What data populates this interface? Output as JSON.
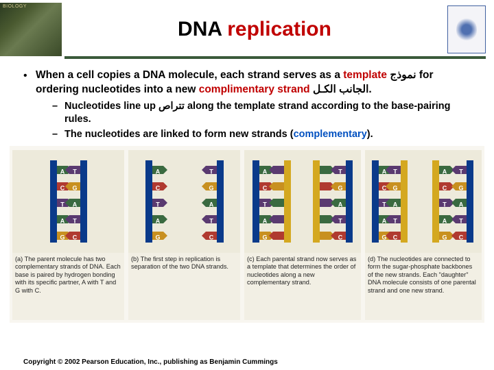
{
  "header": {
    "title_black": "DNA ",
    "title_red": "replication"
  },
  "main_bullet": {
    "pre": "When a cell copies a DNA molecule, each strand serves as a ",
    "template": "template",
    "ar1": " نموذج",
    "mid": " for ordering nucleotides into a new ",
    "complimentary": "complimentary strand",
    "ar2": " الجانب الكـل",
    "post": "."
  },
  "sub1": {
    "pre": "Nucleotides line up ",
    "ar": "تتراص",
    "post": " along the template strand according to the base-pairing rules."
  },
  "sub2": {
    "pre": "The nucleotides are linked to form new strands (",
    "comp": "complementary",
    "post": ")."
  },
  "dna": {
    "backbone_blue": "#0a3a8a",
    "backbone_yellow": "#d4a820",
    "base_colors": {
      "A": "#3a6a40",
      "T": "#5a3a70",
      "C": "#b03a30",
      "G": "#c89020"
    },
    "left_strand": [
      "A",
      "C",
      "T",
      "A",
      "G"
    ],
    "right_strand": [
      "T",
      "G",
      "A",
      "T",
      "C"
    ],
    "bg": "#edeadb"
  },
  "captions": {
    "a": "(a) The parent molecule has two complementary strands of DNA. Each base is paired by hydrogen bonding with its specific partner, A with T and G with C.",
    "b": "(b) The first step in replication is separation of the two DNA strands.",
    "c": "(c) Each parental strand now serves as a template that determines the order of nucleotides along a new complementary strand.",
    "d": "(d) The nucleotides are connected to form the sugar-phosphate backbones of the new strands. Each \"daughter\" DNA molecule consists of one parental strand and one new strand."
  },
  "copyright": "Copyright © 2002 Pearson Education, Inc., publishing as Benjamin Cummings"
}
